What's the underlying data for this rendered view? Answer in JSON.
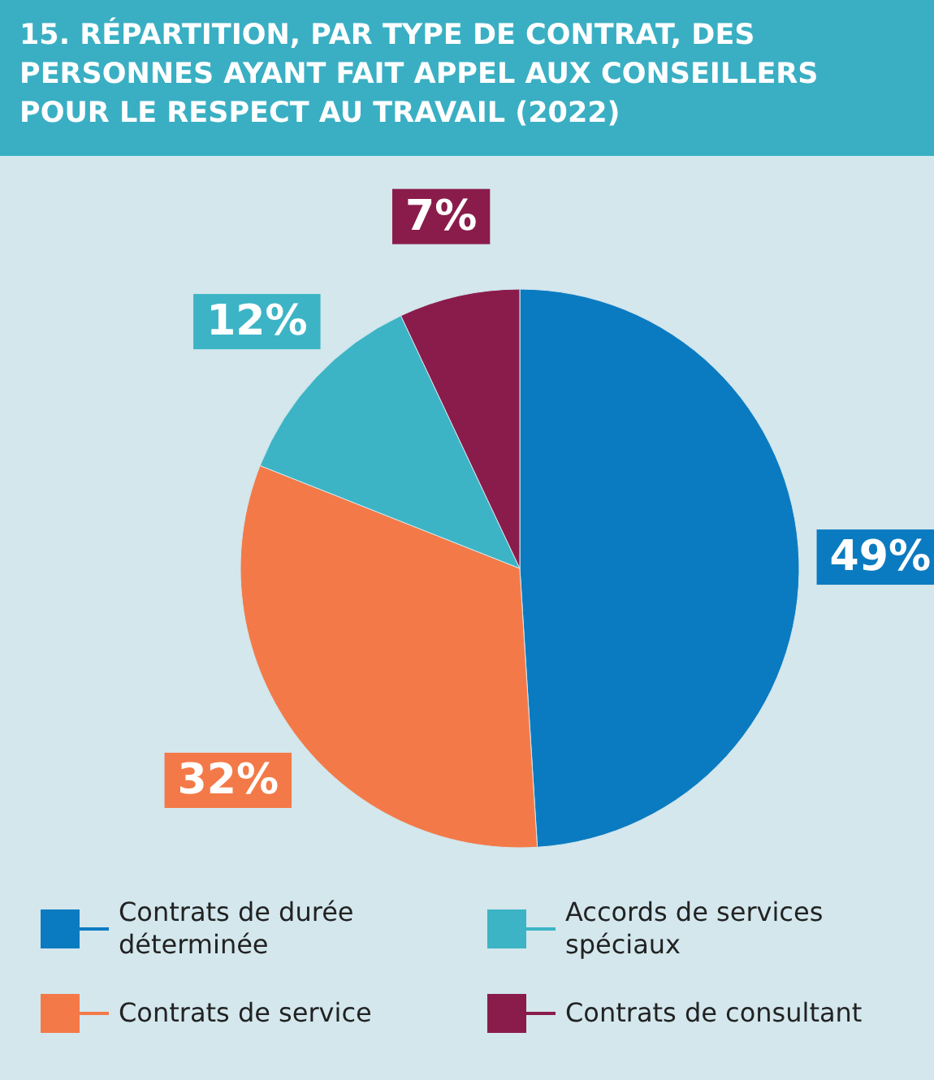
{
  "chart_data": {
    "type": "pie",
    "title": "15. RÉPARTITION, PAR TYPE DE CONTRAT, DES PERSONNES AYANT FAIT APPEL AUX CONSEILLERS POUR LE RESPECT AU TRAVAIL (2022)",
    "categories": [
      "Contrats de durée déterminée",
      "Contrats de service",
      "Accords de services spéciaux",
      "Contrats de consultant"
    ],
    "values": [
      49,
      32,
      12,
      7
    ],
    "colors": [
      "#0b7bc1",
      "#f37a48",
      "#3cb4c5",
      "#8a1c4b"
    ],
    "value_labels": [
      "49%",
      "32%",
      "12%",
      "7%"
    ],
    "legend": "bottom"
  }
}
